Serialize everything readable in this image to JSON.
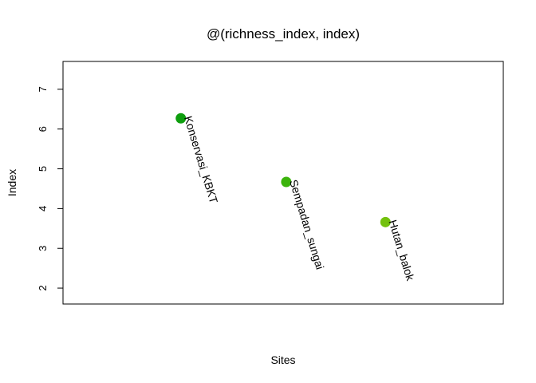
{
  "chart_data": {
    "type": "scatter",
    "title": "@(richness_index, index)",
    "xlabel": "Sites",
    "ylabel": "Index",
    "ylim": [
      1.6,
      7.7
    ],
    "xlim": [
      0.45,
      4.0
    ],
    "y_ticks": [
      2,
      3,
      4,
      5,
      6,
      7
    ],
    "y_tick_labels": [
      "2",
      "3",
      "4",
      "5",
      "6",
      "7"
    ],
    "grid": false,
    "points": [
      {
        "label": "Konservasi_KBKT",
        "x": 1.4,
        "y": 6.27,
        "color": "#0e9e0e"
      },
      {
        "label": "Sempadan_sungai",
        "x": 2.25,
        "y": 4.67,
        "color": "#3cb40c"
      },
      {
        "label": "Hutan_balok",
        "x": 3.05,
        "y": 3.66,
        "color": "#73c10d"
      }
    ]
  }
}
